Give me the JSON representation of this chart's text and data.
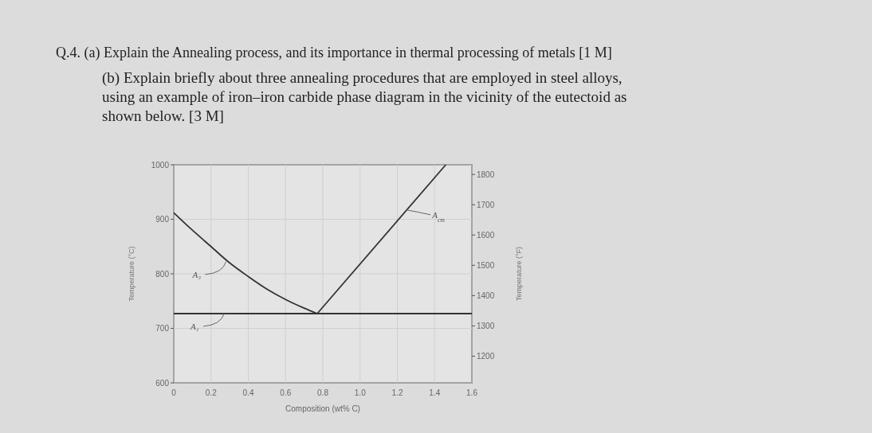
{
  "chart_data": {
    "type": "line",
    "title": "Q.4.  (a) Explain the Annealing process, and its importance in thermal processing of metals [1 M]",
    "subtitle": "(b) Explain briefly about three annealing procedures that are employed in steel alloys, using an example of iron–iron carbide phase diagram in the vicinity of the eutectoid as shown below. [3 M]",
    "xlabel": "Composition (wt% C)",
    "ylabel": "Temperature (°C)",
    "y2label": "Temperature (°F)",
    "xlim": [
      0,
      1.6
    ],
    "xticks": [
      0,
      0.2,
      0.4,
      0.6,
      0.8,
      {
        "value": 1,
        "label": "1.0"
      },
      1.2,
      1.4,
      1.6
    ],
    "ylim": [
      600,
      1000
    ],
    "yticks": [
      600,
      700,
      800,
      900,
      1000
    ],
    "y2lim": [
      1112,
      1832
    ],
    "y2ticks": [
      1200,
      1300,
      1400,
      1500,
      1600,
      1700,
      1800
    ],
    "grid": true,
    "series": [
      {
        "color": "#333333",
        "x": [
          0,
          0.1,
          0.2,
          0.3,
          0.4,
          0.5,
          0.6,
          0.7,
          0.77
        ],
        "values": [
          912,
          880,
          850,
          820,
          795,
          772,
          753,
          737,
          727
        ]
      },
      {
        "color": "#333333",
        "x": [
          0.77,
          1.46
        ],
        "values": [
          727,
          1000
        ]
      },
      {
        "color": "#333333",
        "x": [
          0,
          1.6
        ],
        "values": [
          727,
          727
        ]
      }
    ],
    "annotations": [
      {
        "text": "A₃",
        "x": 0.28,
        "y": 822
      },
      {
        "text": "A₁",
        "x": 0.27,
        "y": 727
      },
      {
        "text": "A$_{cm}$",
        "x": 1.25,
        "y": 917
      }
    ]
  }
}
